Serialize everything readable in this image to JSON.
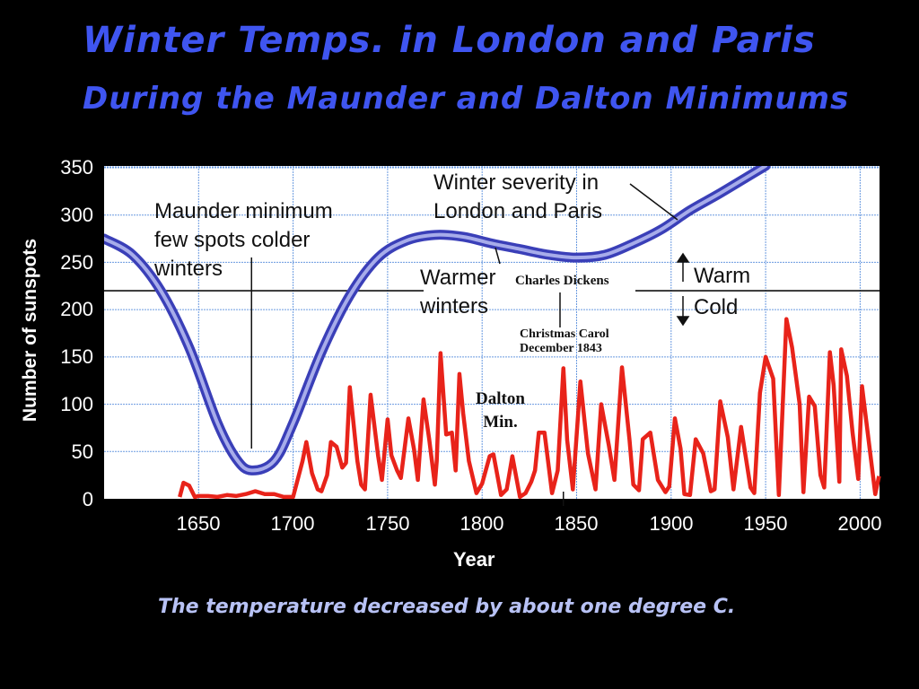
{
  "slide": {
    "title_line1": "Winter Temps. in London and Paris",
    "title_line2": "During the Maunder and Dalton Minimums",
    "caption": "The temperature decreased by about one degree C."
  },
  "colors": {
    "background": "#000000",
    "title": "#3f55f0",
    "caption": "#b8c2f5",
    "sunspot_line": "#e8231a",
    "winter_severity_line": "#3a3fb8",
    "grid": "#6a9ae0"
  },
  "axes": {
    "ylabel": "Number of sunspots",
    "xlabel": "Year",
    "yticks": [
      "350",
      "300",
      "250",
      "200",
      "150",
      "100",
      "50",
      "0"
    ],
    "xticks": [
      "1650",
      "1700",
      "1750",
      "1800",
      "1850",
      "1900",
      "1950",
      "2000"
    ]
  },
  "annotations": {
    "maunder": [
      "Maunder minimum",
      "few spots colder",
      "winters"
    ],
    "severity": [
      "Winter severity in",
      "London and Paris"
    ],
    "warmer": [
      "Warmer",
      "winters"
    ],
    "dickens": "Charles Dickens",
    "carol": [
      "Christmas Carol",
      "December 1843"
    ],
    "dalton": [
      "Dalton",
      "Min."
    ],
    "warm": "Warm",
    "cold": "Cold"
  },
  "chart_data": {
    "type": "line",
    "title": "Winter Temps. in London and Paris During the Maunder and Dalton Minimums",
    "xlabel": "Year",
    "ylabel": "Number of sunspots",
    "xlim": [
      1600,
      2010
    ],
    "ylim": [
      0,
      350
    ],
    "grid": true,
    "reference_line": {
      "y": 220,
      "meaning": "Warm above / Cold below"
    },
    "series": [
      {
        "name": "Sunspots",
        "color": "#e8231a",
        "x": [
          1640,
          1642,
          1645,
          1648,
          1650,
          1655,
          1660,
          1665,
          1670,
          1675,
          1680,
          1685,
          1690,
          1695,
          1700,
          1705,
          1707,
          1710,
          1713,
          1715,
          1718,
          1720,
          1723,
          1726,
          1728,
          1730,
          1734,
          1736,
          1738,
          1741,
          1745,
          1747,
          1750,
          1752,
          1755,
          1757,
          1761,
          1764,
          1766,
          1769,
          1772,
          1775,
          1776,
          1778,
          1781,
          1784,
          1786,
          1788,
          1790,
          1793,
          1797,
          1800,
          1804,
          1806,
          1810,
          1813,
          1816,
          1820,
          1823,
          1826,
          1828,
          1830,
          1833,
          1837,
          1840,
          1843,
          1845,
          1848,
          1852,
          1856,
          1860,
          1863,
          1867,
          1870,
          1874,
          1878,
          1880,
          1883,
          1885,
          1889,
          1893,
          1897,
          1899,
          1902,
          1905,
          1907,
          1910,
          1913,
          1917,
          1921,
          1923,
          1926,
          1930,
          1933,
          1937,
          1942,
          1944,
          1947,
          1950,
          1954,
          1957,
          1961,
          1964,
          1968,
          1970,
          1973,
          1976,
          1979,
          1981,
          1984,
          1986,
          1989,
          1990,
          1993,
          1996,
          1999,
          2001,
          2004,
          2008,
          2010
        ],
        "values": [
          0,
          17,
          14,
          1,
          3,
          3,
          2,
          4,
          3,
          5,
          8,
          5,
          5,
          2,
          2,
          40,
          60,
          27,
          10,
          8,
          25,
          60,
          55,
          33,
          38,
          118,
          40,
          15,
          10,
          110,
          45,
          20,
          84,
          46,
          30,
          22,
          85,
          52,
          20,
          105,
          63,
          15,
          40,
          154,
          68,
          70,
          30,
          132,
          90,
          40,
          6,
          16,
          45,
          47,
          4,
          10,
          45,
          2,
          6,
          18,
          30,
          70,
          70,
          6,
          30,
          138,
          62,
          10,
          124,
          48,
          10,
          100,
          57,
          20,
          139,
          62,
          15,
          9,
          63,
          70,
          20,
          7,
          13,
          85,
          53,
          5,
          4,
          63,
          48,
          8,
          10,
          103,
          65,
          10,
          76,
          12,
          6,
          112,
          150,
          127,
          4,
          190,
          160,
          100,
          7,
          108,
          98,
          25,
          12,
          155,
          120,
          18,
          158,
          130,
          70,
          21,
          119,
          70,
          5,
          24
        ]
      },
      {
        "name": "Winter severity in London and Paris",
        "color": "#3a3fb8",
        "x": [
          1600,
          1615,
          1630,
          1645,
          1660,
          1670,
          1678,
          1690,
          1700,
          1715,
          1730,
          1745,
          1760,
          1775,
          1790,
          1805,
          1820,
          1835,
          1850,
          1865,
          1880,
          1895,
          1910,
          1925,
          1940,
          1950
        ],
        "values": [
          275,
          258,
          220,
          160,
          80,
          42,
          30,
          40,
          80,
          155,
          215,
          255,
          273,
          279,
          277,
          270,
          264,
          258,
          255,
          258,
          270,
          285,
          305,
          322,
          340,
          352
        ]
      }
    ],
    "annotations": [
      {
        "text": "Maunder minimum few spots colder winters",
        "x": 1678
      },
      {
        "text": "Winter severity in London and Paris"
      },
      {
        "text": "Warmer winters"
      },
      {
        "text": "Charles Dickens Christmas Carol December 1843",
        "x": 1843
      },
      {
        "text": "Dalton Min.",
        "x": 1810
      },
      {
        "text": "Warm / Cold",
        "x": 1905
      }
    ]
  }
}
